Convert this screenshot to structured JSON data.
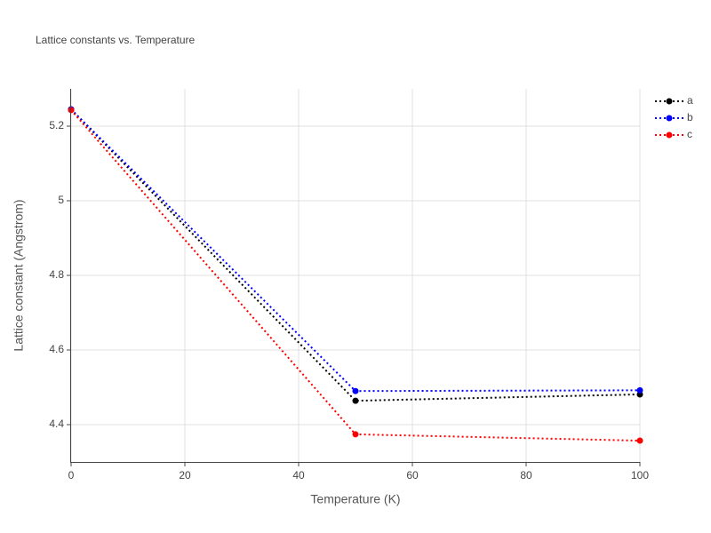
{
  "chart_data": {
    "type": "line",
    "title": "Lattice constants vs. Temperature",
    "x_label": "Temperature (K)",
    "y_label": "Lattice constant (Angstrom)",
    "x": [
      0,
      50,
      100
    ],
    "series": [
      {
        "name": "a",
        "color": "#000000",
        "values": [
          5.245,
          4.464,
          4.481
        ]
      },
      {
        "name": "b",
        "color": "#0000ff",
        "values": [
          5.245,
          4.49,
          4.492
        ]
      },
      {
        "name": "c",
        "color": "#ff0000",
        "values": [
          5.243,
          4.374,
          4.357
        ]
      }
    ],
    "xlim": [
      0,
      100
    ],
    "xticks": [
      0,
      20,
      40,
      60,
      80,
      100
    ],
    "ylim": [
      4.3,
      5.3
    ],
    "yticks": [
      4.4,
      4.6,
      4.8,
      5,
      5.2
    ],
    "grid": true,
    "legend": "top-right"
  }
}
